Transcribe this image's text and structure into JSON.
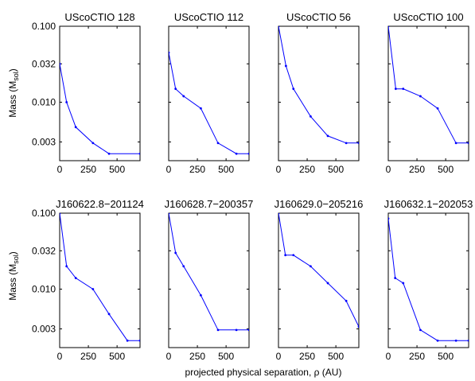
{
  "colors": {
    "line": "#0000ff",
    "axes": "#000000",
    "background": "#ffffff"
  },
  "figure": {
    "xlabel": "projected physical separation, ρ (AU)",
    "ylabel_main": "Mass (M",
    "ylabel_sub": "sol",
    "ylabel_close": ")"
  },
  "chart_data": {
    "type": "line",
    "yscale": "log",
    "ylim": [
      0.0017,
      0.1
    ],
    "xlim": [
      0,
      700
    ],
    "xticks": [
      0,
      250,
      500
    ],
    "xtick_labels": [
      "0",
      "250",
      "500"
    ],
    "yticks": [
      0.1,
      0.032,
      0.01,
      0.003
    ],
    "ytick_labels": [
      "0.100",
      "0.032",
      "0.010",
      "0.003"
    ],
    "panels": [
      {
        "title": "UScoCTIO 128",
        "x": [
          0,
          60,
          140,
          290,
          430,
          700
        ],
        "y": [
          0.032,
          0.01,
          0.0047,
          0.0029,
          0.0021,
          0.0021
        ]
      },
      {
        "title": "UScoCTIO 112",
        "x": [
          0,
          60,
          130,
          280,
          430,
          590,
          700
        ],
        "y": [
          0.045,
          0.015,
          0.012,
          0.0083,
          0.0029,
          0.0021,
          0.0021
        ]
      },
      {
        "title": "UScoCTIO 56",
        "x": [
          0,
          65,
          130,
          280,
          430,
          590,
          700
        ],
        "y": [
          0.1,
          0.03,
          0.015,
          0.0065,
          0.0036,
          0.0029,
          0.0029
        ]
      },
      {
        "title": "UScoCTIO 100",
        "x": [
          0,
          65,
          130,
          280,
          430,
          590,
          700
        ],
        "y": [
          0.1,
          0.015,
          0.015,
          0.012,
          0.0083,
          0.0029,
          0.0029
        ]
      },
      {
        "title": "J160622.8−201124",
        "x": [
          0,
          60,
          140,
          290,
          430,
          590,
          700
        ],
        "y": [
          0.1,
          0.02,
          0.014,
          0.01,
          0.0047,
          0.0021,
          0.0021
        ]
      },
      {
        "title": "J160628.7−200357",
        "x": [
          0,
          60,
          130,
          280,
          430,
          590,
          700
        ],
        "y": [
          0.1,
          0.03,
          0.02,
          0.0083,
          0.0029,
          0.0029,
          0.0029
        ]
      },
      {
        "title": "J160629.0−205216",
        "x": [
          0,
          60,
          130,
          280,
          430,
          590,
          700
        ],
        "y": [
          0.1,
          0.028,
          0.028,
          0.02,
          0.012,
          0.007,
          0.0032
        ]
      },
      {
        "title": "J160632.1−202053",
        "x": [
          0,
          60,
          130,
          280,
          430,
          590,
          700
        ],
        "y": [
          0.085,
          0.014,
          0.012,
          0.0029,
          0.0021,
          0.0021,
          0.0021
        ]
      }
    ]
  }
}
